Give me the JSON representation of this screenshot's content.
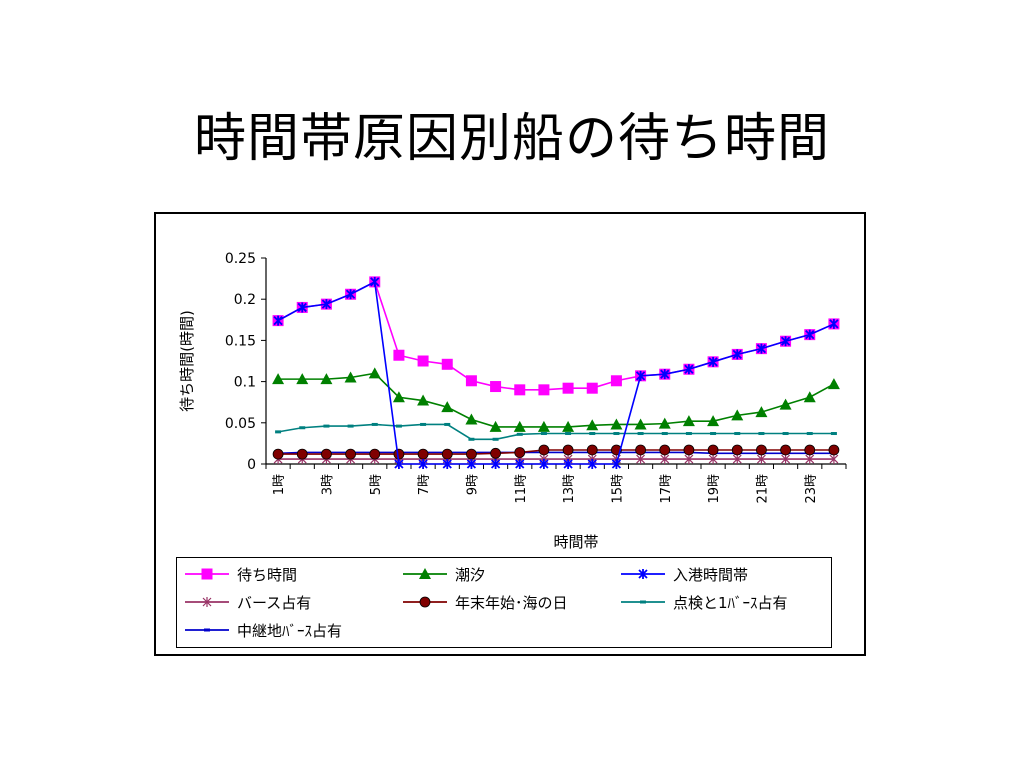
{
  "slide": {
    "title": "時間帯原因別船の待ち時間"
  },
  "chart_data": {
    "type": "line",
    "title": "",
    "xlabel": "時間帯",
    "ylabel": "待ち時間(時間)",
    "ylim": [
      0,
      0.25
    ],
    "yticks": [
      "0",
      "0.05",
      "0.1",
      "0.15",
      "0.2",
      "0.25"
    ],
    "categories": [
      "1時",
      "2時",
      "3時",
      "4時",
      "5時",
      "6時",
      "7時",
      "8時",
      "9時",
      "10時",
      "11時",
      "12時",
      "13時",
      "14時",
      "15時",
      "16時",
      "17時",
      "18時",
      "19時",
      "20時",
      "21時",
      "22時",
      "23時",
      "24時"
    ],
    "x_tick_labels": [
      "1時",
      "",
      "3時",
      "",
      "5時",
      "",
      "7時",
      "",
      "9時",
      "",
      "11時",
      "",
      "13時",
      "",
      "15時",
      "",
      "17時",
      "",
      "19時",
      "",
      "21時",
      "",
      "23時",
      ""
    ],
    "grid": false,
    "legend_position": "bottom",
    "series": [
      {
        "name": "待ち時間",
        "color": "#ff00ff",
        "marker": "square",
        "values": [
          0.174,
          0.19,
          0.194,
          0.206,
          0.221,
          0.132,
          0.125,
          0.121,
          0.101,
          0.094,
          0.09,
          0.09,
          0.092,
          0.092,
          0.101,
          0.107,
          0.109,
          0.115,
          0.124,
          0.133,
          0.14,
          0.149,
          0.157,
          0.17
        ]
      },
      {
        "name": "潮汐",
        "color": "#008000",
        "marker": "triangle",
        "values": [
          0.103,
          0.103,
          0.103,
          0.105,
          0.11,
          0.081,
          0.077,
          0.069,
          0.054,
          0.045,
          0.045,
          0.045,
          0.045,
          0.047,
          0.048,
          0.048,
          0.049,
          0.052,
          0.052,
          0.059,
          0.063,
          0.072,
          0.081,
          0.097
        ]
      },
      {
        "name": "入港時間帯",
        "color": "#0000ff",
        "marker": "x",
        "values": [
          0.174,
          0.19,
          0.194,
          0.206,
          0.221,
          0,
          0,
          0,
          0,
          0,
          0,
          0,
          0,
          0,
          0,
          0.107,
          0.109,
          0.115,
          0.124,
          0.133,
          0.14,
          0.149,
          0.157,
          0.17
        ]
      },
      {
        "name": "バース占有",
        "color": "#993366",
        "marker": "star",
        "values": [
          0.006,
          0.006,
          0.006,
          0.006,
          0.006,
          0.006,
          0.006,
          0.006,
          0.006,
          0.006,
          0.006,
          0.006,
          0.006,
          0.006,
          0.006,
          0.006,
          0.006,
          0.006,
          0.006,
          0.006,
          0.006,
          0.006,
          0.006,
          0.006
        ]
      },
      {
        "name": "年末年始･海の日",
        "color": "#800000",
        "marker": "circle",
        "values": [
          0.012,
          0.012,
          0.012,
          0.012,
          0.012,
          0.012,
          0.012,
          0.012,
          0.012,
          0.013,
          0.014,
          0.017,
          0.017,
          0.017,
          0.017,
          0.017,
          0.017,
          0.017,
          0.017,
          0.017,
          0.017,
          0.017,
          0.017,
          0.017
        ]
      },
      {
        "name": "点検と1ﾊﾞｰｽ占有",
        "color": "#008080",
        "marker": "dash",
        "values": [
          0.039,
          0.044,
          0.046,
          0.046,
          0.048,
          0.046,
          0.048,
          0.048,
          0.03,
          0.03,
          0.036,
          0.037,
          0.037,
          0.037,
          0.037,
          0.037,
          0.037,
          0.037,
          0.037,
          0.037,
          0.037,
          0.037,
          0.037,
          0.037
        ]
      },
      {
        "name": "中継地ﾊﾞｰｽ占有",
        "color": "#0000cc",
        "marker": "dash",
        "values": [
          0.013,
          0.014,
          0.014,
          0.014,
          0.014,
          0.014,
          0.014,
          0.014,
          0.014,
          0.014,
          0.014,
          0.014,
          0.014,
          0.014,
          0.014,
          0.014,
          0.014,
          0.014,
          0.013,
          0.013,
          0.013,
          0.013,
          0.013,
          0.013
        ]
      }
    ]
  }
}
